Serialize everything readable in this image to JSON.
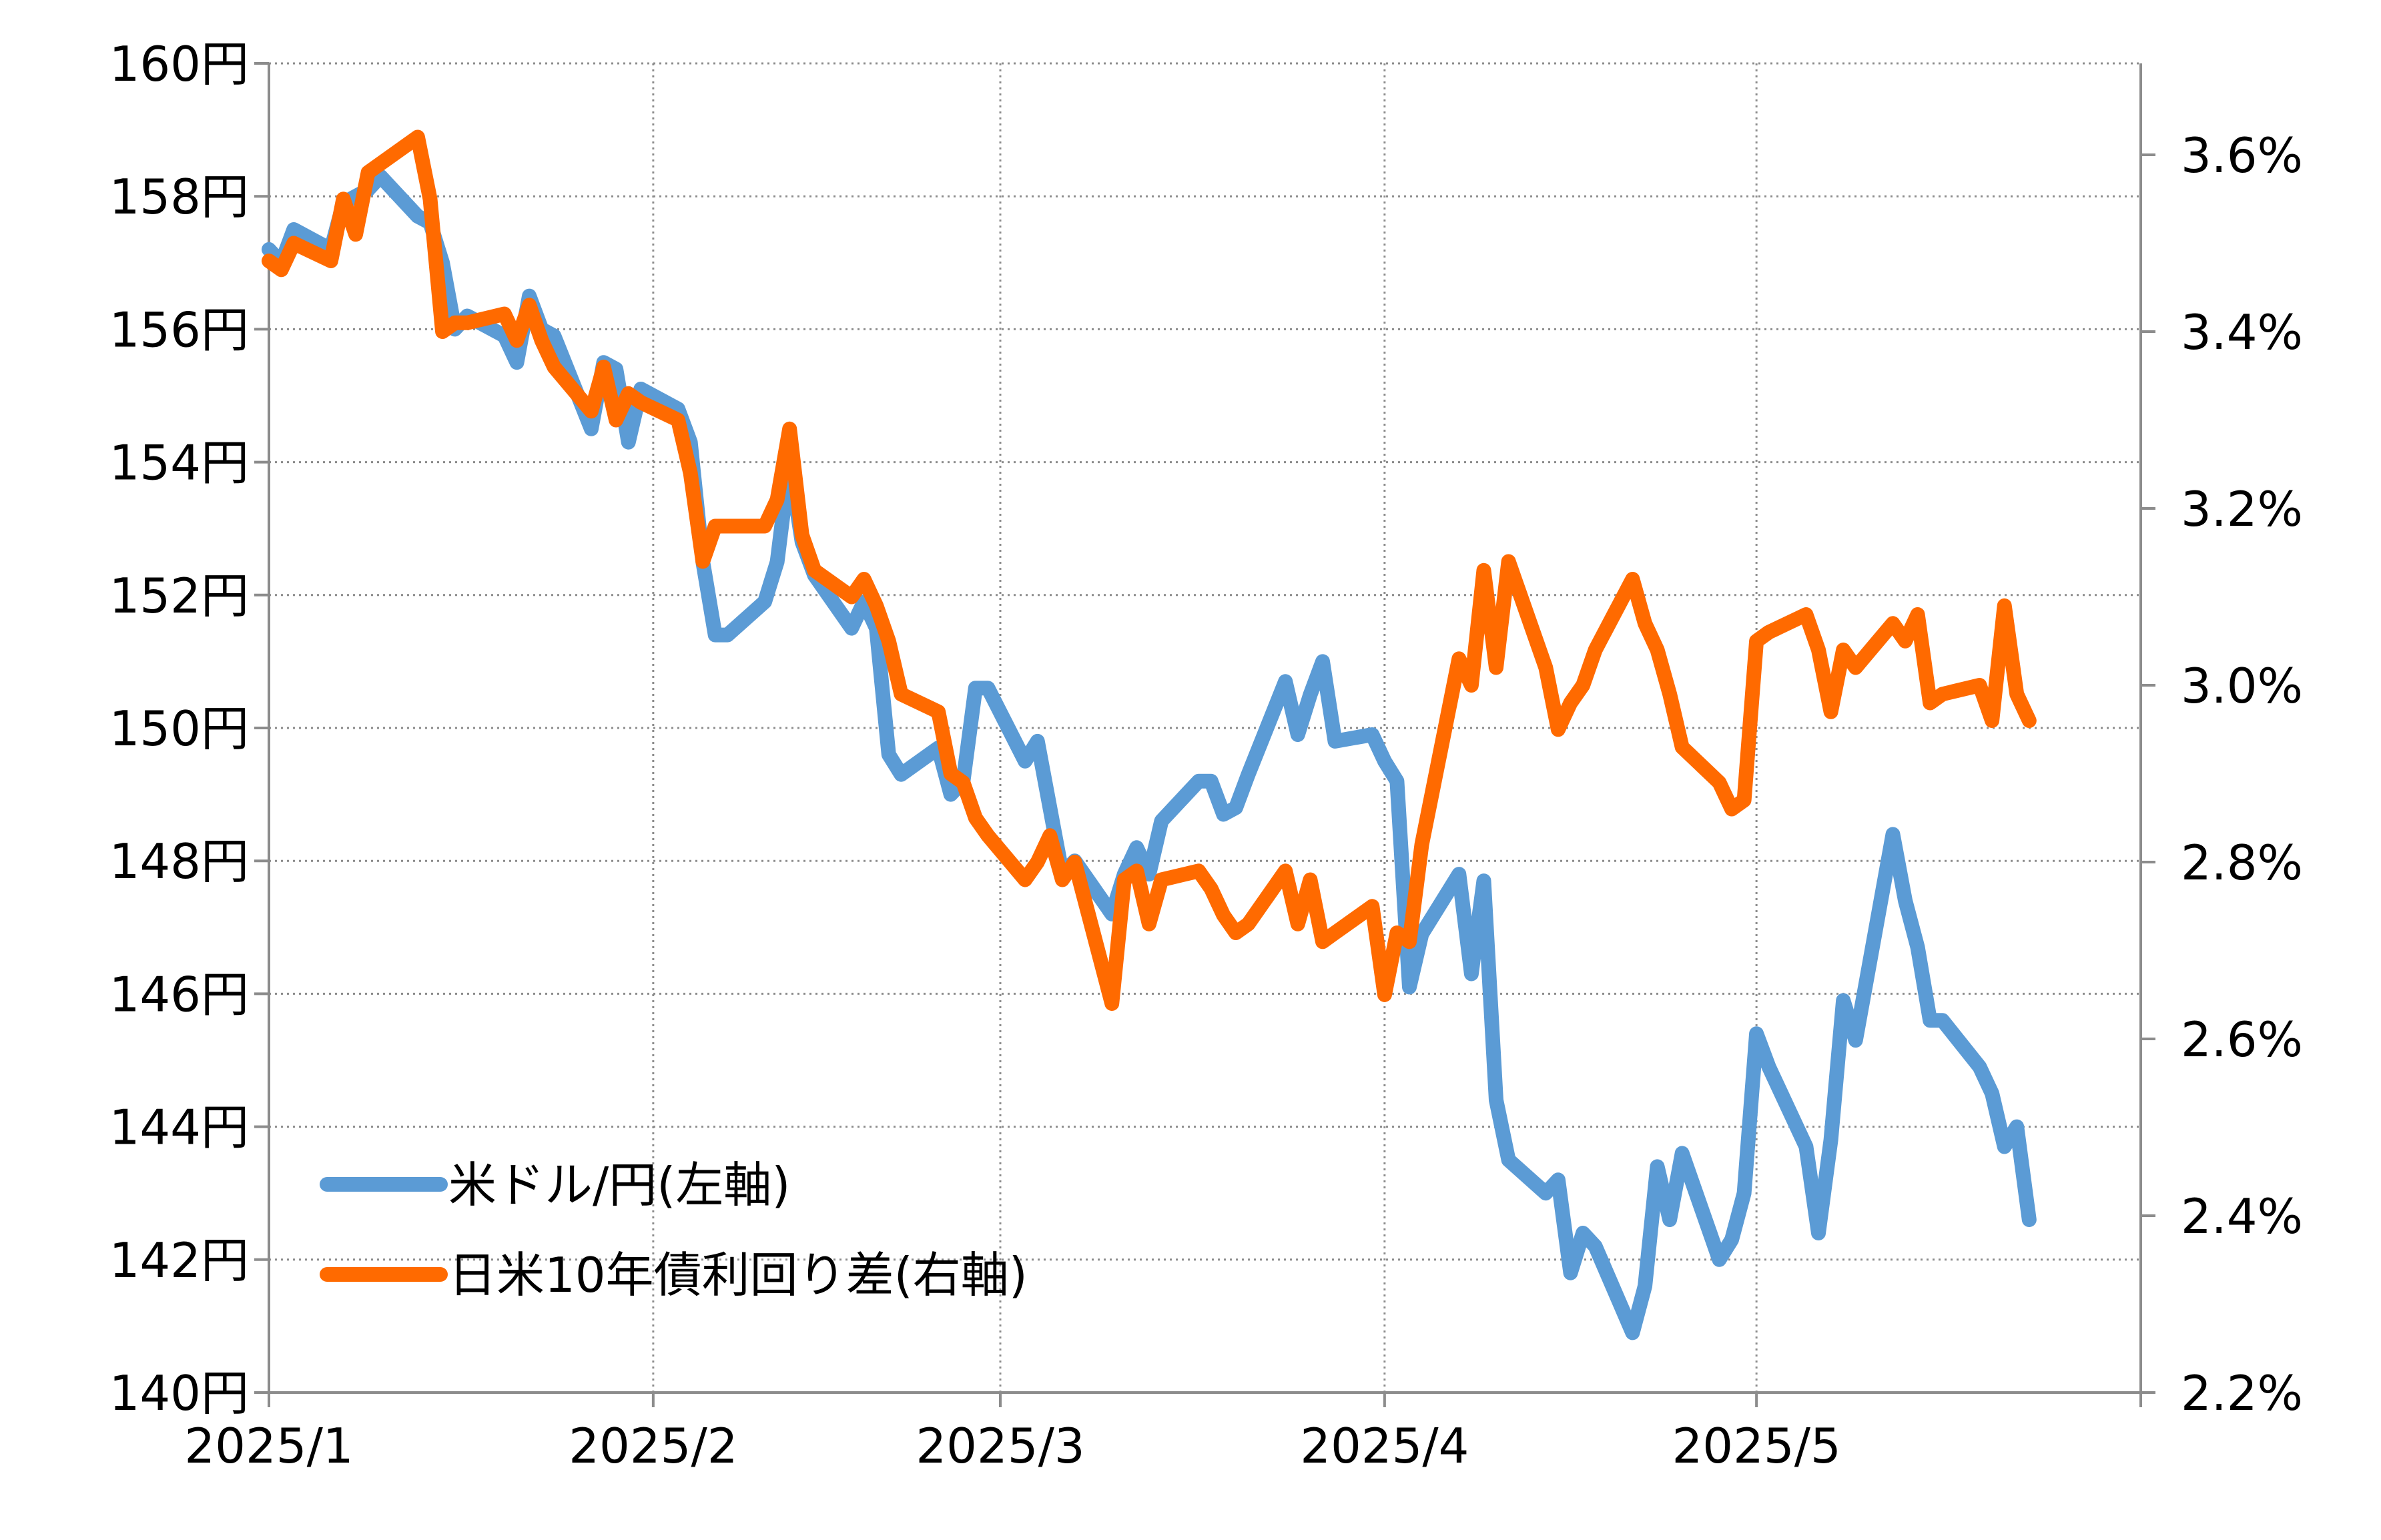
{
  "chart_data": {
    "type": "line",
    "x_axis": {
      "tick_labels": [
        "2025/1",
        "2025/2",
        "2025/3",
        "2025/4",
        "2025/5"
      ],
      "tick_dates": [
        "2025-01-01",
        "2025-02-01",
        "2025-03-01",
        "2025-04-01",
        "2025-05-01"
      ],
      "range": [
        "2025-01-01",
        "2025-06-01"
      ]
    },
    "y_left": {
      "ylim": [
        140,
        160
      ],
      "tick_labels": [
        "140円",
        "142円",
        "144円",
        "146円",
        "148円",
        "150円",
        "152円",
        "154円",
        "156円",
        "158円",
        "160円"
      ]
    },
    "y_right": {
      "ylim": [
        2.2,
        3.7
      ],
      "tick_labels": [
        "2.2%",
        "2.4%",
        "2.6%",
        "2.8%",
        "3.0%",
        "3.2%",
        "3.4%",
        "3.6%"
      ]
    },
    "grid": true,
    "legend_position": "bottom-left",
    "series": [
      {
        "name": "米ドル/円(左軸)",
        "axis": "left",
        "color": "#5b9bd5",
        "points": [
          [
            "2025-01-01",
            157.2
          ],
          [
            "2025-01-02",
            157.0
          ],
          [
            "2025-01-03",
            157.5
          ],
          [
            "2025-01-06",
            157.2
          ],
          [
            "2025-01-07",
            157.9
          ],
          [
            "2025-01-09",
            158.1
          ],
          [
            "2025-01-10",
            158.3
          ],
          [
            "2025-01-13",
            157.7
          ],
          [
            "2025-01-14",
            157.6
          ],
          [
            "2025-01-15",
            157.0
          ],
          [
            "2025-01-16",
            156.0
          ],
          [
            "2025-01-17",
            156.2
          ],
          [
            "2025-01-20",
            155.9
          ],
          [
            "2025-01-21",
            155.5
          ],
          [
            "2025-01-22",
            156.5
          ],
          [
            "2025-01-23",
            156.0
          ],
          [
            "2025-01-24",
            155.9
          ],
          [
            "2025-01-27",
            154.5
          ],
          [
            "2025-01-28",
            155.5
          ],
          [
            "2025-01-29",
            155.4
          ],
          [
            "2025-01-30",
            154.3
          ],
          [
            "2025-01-31",
            155.1
          ],
          [
            "2025-02-03",
            154.8
          ],
          [
            "2025-02-04",
            154.3
          ],
          [
            "2025-02-05",
            152.5
          ],
          [
            "2025-02-06",
            151.4
          ],
          [
            "2025-02-07",
            151.4
          ],
          [
            "2025-02-10",
            151.9
          ],
          [
            "2025-02-11",
            152.5
          ],
          [
            "2025-02-12",
            154.0
          ],
          [
            "2025-02-13",
            152.8
          ],
          [
            "2025-02-14",
            152.3
          ],
          [
            "2025-02-17",
            151.5
          ],
          [
            "2025-02-18",
            151.9
          ],
          [
            "2025-02-19",
            151.5
          ],
          [
            "2025-02-20",
            149.6
          ],
          [
            "2025-02-21",
            149.3
          ],
          [
            "2025-02-24",
            149.7
          ],
          [
            "2025-02-25",
            149.0
          ],
          [
            "2025-02-26",
            149.2
          ],
          [
            "2025-02-27",
            150.6
          ],
          [
            "2025-02-28",
            150.6
          ],
          [
            "2025-03-03",
            149.5
          ],
          [
            "2025-03-04",
            149.8
          ],
          [
            "2025-03-05",
            148.8
          ],
          [
            "2025-03-06",
            147.8
          ],
          [
            "2025-03-07",
            148.0
          ],
          [
            "2025-03-10",
            147.2
          ],
          [
            "2025-03-11",
            147.8
          ],
          [
            "2025-03-12",
            148.2
          ],
          [
            "2025-03-13",
            147.8
          ],
          [
            "2025-03-14",
            148.6
          ],
          [
            "2025-03-17",
            149.2
          ],
          [
            "2025-03-18",
            149.2
          ],
          [
            "2025-03-19",
            148.7
          ],
          [
            "2025-03-20",
            148.8
          ],
          [
            "2025-03-21",
            149.3
          ],
          [
            "2025-03-24",
            150.7
          ],
          [
            "2025-03-25",
            149.9
          ],
          [
            "2025-03-26",
            150.5
          ],
          [
            "2025-03-27",
            151.0
          ],
          [
            "2025-03-28",
            149.8
          ],
          [
            "2025-03-31",
            149.9
          ],
          [
            "2025-04-01",
            149.5
          ],
          [
            "2025-04-02",
            149.2
          ],
          [
            "2025-04-03",
            146.1
          ],
          [
            "2025-04-04",
            146.9
          ],
          [
            "2025-04-07",
            147.8
          ],
          [
            "2025-04-08",
            146.3
          ],
          [
            "2025-04-09",
            147.7
          ],
          [
            "2025-04-10",
            144.4
          ],
          [
            "2025-04-11",
            143.5
          ],
          [
            "2025-04-14",
            143.0
          ],
          [
            "2025-04-15",
            143.2
          ],
          [
            "2025-04-16",
            141.8
          ],
          [
            "2025-04-17",
            142.4
          ],
          [
            "2025-04-18",
            142.2
          ],
          [
            "2025-04-21",
            140.9
          ],
          [
            "2025-04-22",
            141.6
          ],
          [
            "2025-04-23",
            143.4
          ],
          [
            "2025-04-24",
            142.6
          ],
          [
            "2025-04-25",
            143.6
          ],
          [
            "2025-04-28",
            142.0
          ],
          [
            "2025-04-29",
            142.3
          ],
          [
            "2025-04-30",
            143.0
          ],
          [
            "2025-05-01",
            145.4
          ],
          [
            "2025-05-02",
            144.9
          ],
          [
            "2025-05-05",
            143.7
          ],
          [
            "2025-05-06",
            142.4
          ],
          [
            "2025-05-07",
            143.8
          ],
          [
            "2025-05-08",
            145.9
          ],
          [
            "2025-05-09",
            145.3
          ],
          [
            "2025-05-12",
            148.4
          ],
          [
            "2025-05-13",
            147.4
          ],
          [
            "2025-05-14",
            146.7
          ],
          [
            "2025-05-15",
            145.6
          ],
          [
            "2025-05-16",
            145.6
          ],
          [
            "2025-05-19",
            144.9
          ],
          [
            "2025-05-20",
            144.5
          ],
          [
            "2025-05-21",
            143.7
          ],
          [
            "2025-05-22",
            144.0
          ],
          [
            "2025-05-23",
            142.6
          ]
        ]
      },
      {
        "name": "日米10年債利回り差(右軸)",
        "axis": "right",
        "color": "#ff6a00",
        "points": [
          [
            "2025-01-01",
            3.48
          ],
          [
            "2025-01-02",
            3.47
          ],
          [
            "2025-01-03",
            3.5
          ],
          [
            "2025-01-06",
            3.48
          ],
          [
            "2025-01-07",
            3.55
          ],
          [
            "2025-01-08",
            3.51
          ],
          [
            "2025-01-09",
            3.58
          ],
          [
            "2025-01-13",
            3.62
          ],
          [
            "2025-01-14",
            3.55
          ],
          [
            "2025-01-15",
            3.4
          ],
          [
            "2025-01-16",
            3.41
          ],
          [
            "2025-01-17",
            3.41
          ],
          [
            "2025-01-20",
            3.42
          ],
          [
            "2025-01-21",
            3.39
          ],
          [
            "2025-01-22",
            3.43
          ],
          [
            "2025-01-23",
            3.39
          ],
          [
            "2025-01-24",
            3.36
          ],
          [
            "2025-01-27",
            3.31
          ],
          [
            "2025-01-28",
            3.36
          ],
          [
            "2025-01-29",
            3.3
          ],
          [
            "2025-01-30",
            3.33
          ],
          [
            "2025-01-31",
            3.32
          ],
          [
            "2025-02-03",
            3.3
          ],
          [
            "2025-02-04",
            3.24
          ],
          [
            "2025-02-05",
            3.14
          ],
          [
            "2025-02-06",
            3.18
          ],
          [
            "2025-02-07",
            3.18
          ],
          [
            "2025-02-10",
            3.18
          ],
          [
            "2025-02-11",
            3.21
          ],
          [
            "2025-02-12",
            3.29
          ],
          [
            "2025-02-13",
            3.17
          ],
          [
            "2025-02-14",
            3.13
          ],
          [
            "2025-02-17",
            3.1
          ],
          [
            "2025-02-18",
            3.12
          ],
          [
            "2025-02-19",
            3.09
          ],
          [
            "2025-02-20",
            3.05
          ],
          [
            "2025-02-21",
            2.99
          ],
          [
            "2025-02-24",
            2.97
          ],
          [
            "2025-02-25",
            2.9
          ],
          [
            "2025-02-26",
            2.89
          ],
          [
            "2025-02-27",
            2.85
          ],
          [
            "2025-02-28",
            2.83
          ],
          [
            "2025-03-03",
            2.78
          ],
          [
            "2025-03-04",
            2.8
          ],
          [
            "2025-03-05",
            2.83
          ],
          [
            "2025-03-06",
            2.78
          ],
          [
            "2025-03-07",
            2.8
          ],
          [
            "2025-03-10",
            2.64
          ],
          [
            "2025-03-11",
            2.78
          ],
          [
            "2025-03-12",
            2.79
          ],
          [
            "2025-03-13",
            2.73
          ],
          [
            "2025-03-14",
            2.78
          ],
          [
            "2025-03-17",
            2.79
          ],
          [
            "2025-03-18",
            2.77
          ],
          [
            "2025-03-19",
            2.74
          ],
          [
            "2025-03-20",
            2.72
          ],
          [
            "2025-03-21",
            2.73
          ],
          [
            "2025-03-24",
            2.79
          ],
          [
            "2025-03-25",
            2.73
          ],
          [
            "2025-03-26",
            2.78
          ],
          [
            "2025-03-27",
            2.71
          ],
          [
            "2025-03-28",
            2.72
          ],
          [
            "2025-03-31",
            2.75
          ],
          [
            "2025-04-01",
            2.65
          ],
          [
            "2025-04-02",
            2.72
          ],
          [
            "2025-04-03",
            2.71
          ],
          [
            "2025-04-04",
            2.82
          ],
          [
            "2025-04-07",
            3.03
          ],
          [
            "2025-04-08",
            3.0
          ],
          [
            "2025-04-09",
            3.13
          ],
          [
            "2025-04-10",
            3.02
          ],
          [
            "2025-04-11",
            3.14
          ],
          [
            "2025-04-14",
            3.02
          ],
          [
            "2025-04-15",
            2.95
          ],
          [
            "2025-04-16",
            2.98
          ],
          [
            "2025-04-17",
            3.0
          ],
          [
            "2025-04-18",
            3.04
          ],
          [
            "2025-04-21",
            3.12
          ],
          [
            "2025-04-22",
            3.07
          ],
          [
            "2025-04-23",
            3.04
          ],
          [
            "2025-04-24",
            2.99
          ],
          [
            "2025-04-25",
            2.93
          ],
          [
            "2025-04-28",
            2.89
          ],
          [
            "2025-04-29",
            2.86
          ],
          [
            "2025-04-30",
            2.87
          ],
          [
            "2025-05-01",
            3.05
          ],
          [
            "2025-05-02",
            3.06
          ],
          [
            "2025-05-05",
            3.08
          ],
          [
            "2025-05-06",
            3.04
          ],
          [
            "2025-05-07",
            2.97
          ],
          [
            "2025-05-08",
            3.04
          ],
          [
            "2025-05-09",
            3.02
          ],
          [
            "2025-05-12",
            3.07
          ],
          [
            "2025-05-13",
            3.05
          ],
          [
            "2025-05-14",
            3.08
          ],
          [
            "2025-05-15",
            2.98
          ],
          [
            "2025-05-16",
            2.99
          ],
          [
            "2025-05-19",
            3.0
          ],
          [
            "2025-05-20",
            2.96
          ],
          [
            "2025-05-21",
            3.09
          ],
          [
            "2025-05-22",
            2.99
          ],
          [
            "2025-05-23",
            2.96
          ]
        ]
      }
    ]
  }
}
